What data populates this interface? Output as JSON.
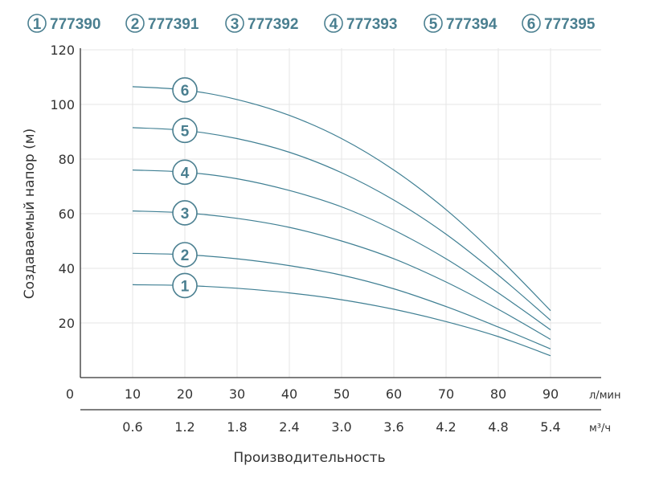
{
  "chart_data": {
    "type": "line",
    "ylabel": "Создаваемый напор (м)",
    "xlabel": "Производительность",
    "x_unit_primary": "л/мин",
    "x_unit_secondary": "м³/ч",
    "x_origin_label": "0",
    "x_ticks": [
      10,
      20,
      30,
      40,
      50,
      60,
      70,
      80,
      90
    ],
    "x_ticks_secondary": [
      "0.6",
      "1.2",
      "1.8",
      "2.4",
      "3.0",
      "3.6",
      "4.2",
      "4.8",
      "5.4"
    ],
    "y_ticks": [
      20,
      40,
      60,
      80,
      100,
      120
    ],
    "xlim": [
      0,
      99
    ],
    "ylim": [
      0,
      120
    ],
    "grid": true,
    "legend_position": "top",
    "series": [
      {
        "name": "1",
        "code": "777390",
        "x": [
          10,
          20,
          30,
          40,
          50,
          60,
          70,
          80,
          90
        ],
        "values": [
          34,
          33.7,
          32.7,
          31,
          28.5,
          25,
          20.5,
          15,
          8
        ]
      },
      {
        "name": "2",
        "code": "777391",
        "x": [
          10,
          20,
          30,
          40,
          50,
          60,
          70,
          80,
          90
        ],
        "values": [
          45.5,
          45,
          43.5,
          41,
          37.5,
          32.5,
          26,
          18.5,
          10.5
        ]
      },
      {
        "name": "3",
        "code": "777392",
        "x": [
          10,
          20,
          30,
          40,
          50,
          60,
          70,
          80,
          90
        ],
        "values": [
          61,
          60.3,
          58.3,
          55,
          50,
          43.5,
          35,
          25,
          14
        ]
      },
      {
        "name": "4",
        "code": "777393",
        "x": [
          10,
          20,
          30,
          40,
          50,
          60,
          70,
          80,
          90
        ],
        "values": [
          76,
          75.2,
          72.8,
          68.5,
          62.5,
          54,
          43.5,
          31,
          17.5
        ]
      },
      {
        "name": "5",
        "code": "777394",
        "x": [
          10,
          20,
          30,
          40,
          50,
          60,
          70,
          80,
          90
        ],
        "values": [
          91.5,
          90.5,
          87.5,
          82.5,
          75,
          65,
          52.5,
          37.5,
          21
        ]
      },
      {
        "name": "6",
        "code": "777395",
        "x": [
          10,
          20,
          30,
          40,
          50,
          60,
          70,
          80,
          90
        ],
        "values": [
          106.5,
          105.3,
          101.8,
          96,
          87.5,
          76,
          61.5,
          44,
          24.5
        ]
      }
    ],
    "curve_labels_at_x": 20
  },
  "colors": {
    "curve": "#3f7f93",
    "accent": "#4a7f90",
    "grid": "#e6e6e6",
    "axis": "#333333"
  }
}
